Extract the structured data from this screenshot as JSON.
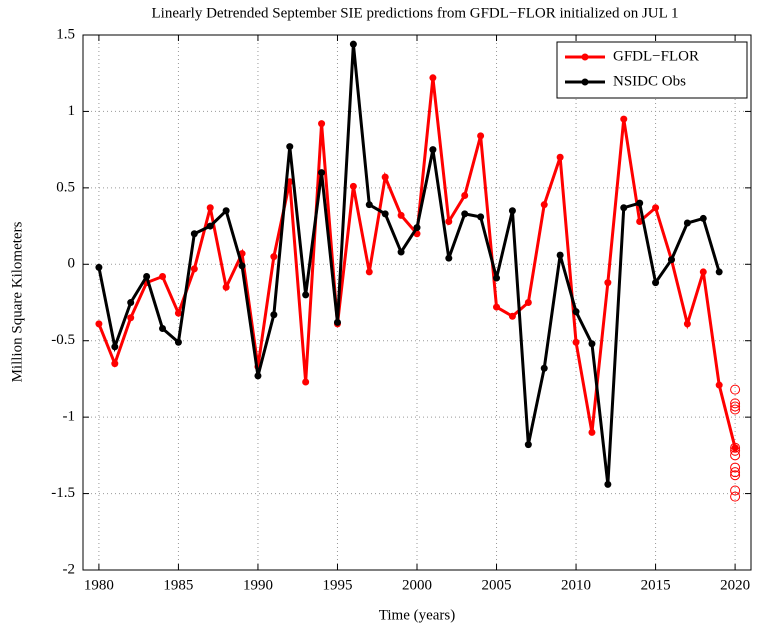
{
  "chart_data": {
    "type": "line",
    "title": "Linearly Detrended September SIE predictions from GFDL−FLOR initialized on JUL 1",
    "x_label": "Time (years)",
    "y_label": "Million Square Kilometers",
    "x": [
      1980,
      1981,
      1982,
      1983,
      1984,
      1985,
      1986,
      1987,
      1988,
      1989,
      1990,
      1991,
      1992,
      1993,
      1994,
      1995,
      1996,
      1997,
      1998,
      1999,
      2000,
      2001,
      2002,
      2003,
      2004,
      2005,
      2006,
      2007,
      2008,
      2009,
      2010,
      2011,
      2012,
      2013,
      2014,
      2015,
      2016,
      2017,
      2018,
      2019,
      2020
    ],
    "series": [
      {
        "name": "GFDL−FLOR",
        "color": "#ff0000",
        "values": [
          -0.39,
          -0.65,
          -0.35,
          -0.12,
          -0.08,
          -0.32,
          -0.03,
          0.37,
          -0.15,
          0.07,
          -0.67,
          0.05,
          0.54,
          -0.77,
          0.92,
          -0.39,
          0.51,
          -0.05,
          0.57,
          0.32,
          0.2,
          1.22,
          0.28,
          0.45,
          0.84,
          -0.28,
          -0.34,
          -0.25,
          0.39,
          0.7,
          -0.51,
          -1.1,
          -0.12,
          0.95,
          0.28,
          0.37,
          0.03,
          -0.39,
          -0.05,
          -0.79,
          -1.2
        ]
      },
      {
        "name": "NSIDC Obs",
        "color": "#000000",
        "values": [
          -0.02,
          -0.54,
          -0.25,
          -0.08,
          -0.42,
          -0.51,
          0.2,
          0.25,
          0.35,
          -0.01,
          -0.73,
          -0.33,
          0.77,
          -0.2,
          0.6,
          -0.38,
          1.44,
          0.39,
          0.33,
          0.08,
          0.24,
          0.75,
          0.04,
          0.33,
          0.31,
          -0.09,
          0.35,
          -1.18,
          -0.68,
          0.06,
          -0.31,
          -0.52,
          -1.44,
          0.37,
          0.4,
          -0.12,
          0.03,
          0.27,
          0.3,
          -0.05,
          null
        ]
      }
    ],
    "ensemble_members": {
      "color": "#ff0000",
      "x": [
        2020,
        2020,
        2020,
        2020,
        2020,
        2020,
        2020,
        2020,
        2020,
        2020,
        2020,
        2020
      ],
      "values": [
        -0.82,
        -0.91,
        -0.93,
        -0.95,
        -1.2,
        -1.22,
        -1.25,
        -1.33,
        -1.36,
        -1.38,
        -1.48,
        -1.52
      ]
    },
    "xlim": [
      1979,
      2021
    ],
    "ylim": [
      -2,
      1.5
    ],
    "xticks": [
      1980,
      1985,
      1990,
      1995,
      2000,
      2005,
      2010,
      2015,
      2020
    ],
    "yticks": [
      -2,
      -1.5,
      -1,
      -0.5,
      0,
      0.5,
      1,
      1.5
    ],
    "grid": true,
    "legend_position": "upper right"
  }
}
